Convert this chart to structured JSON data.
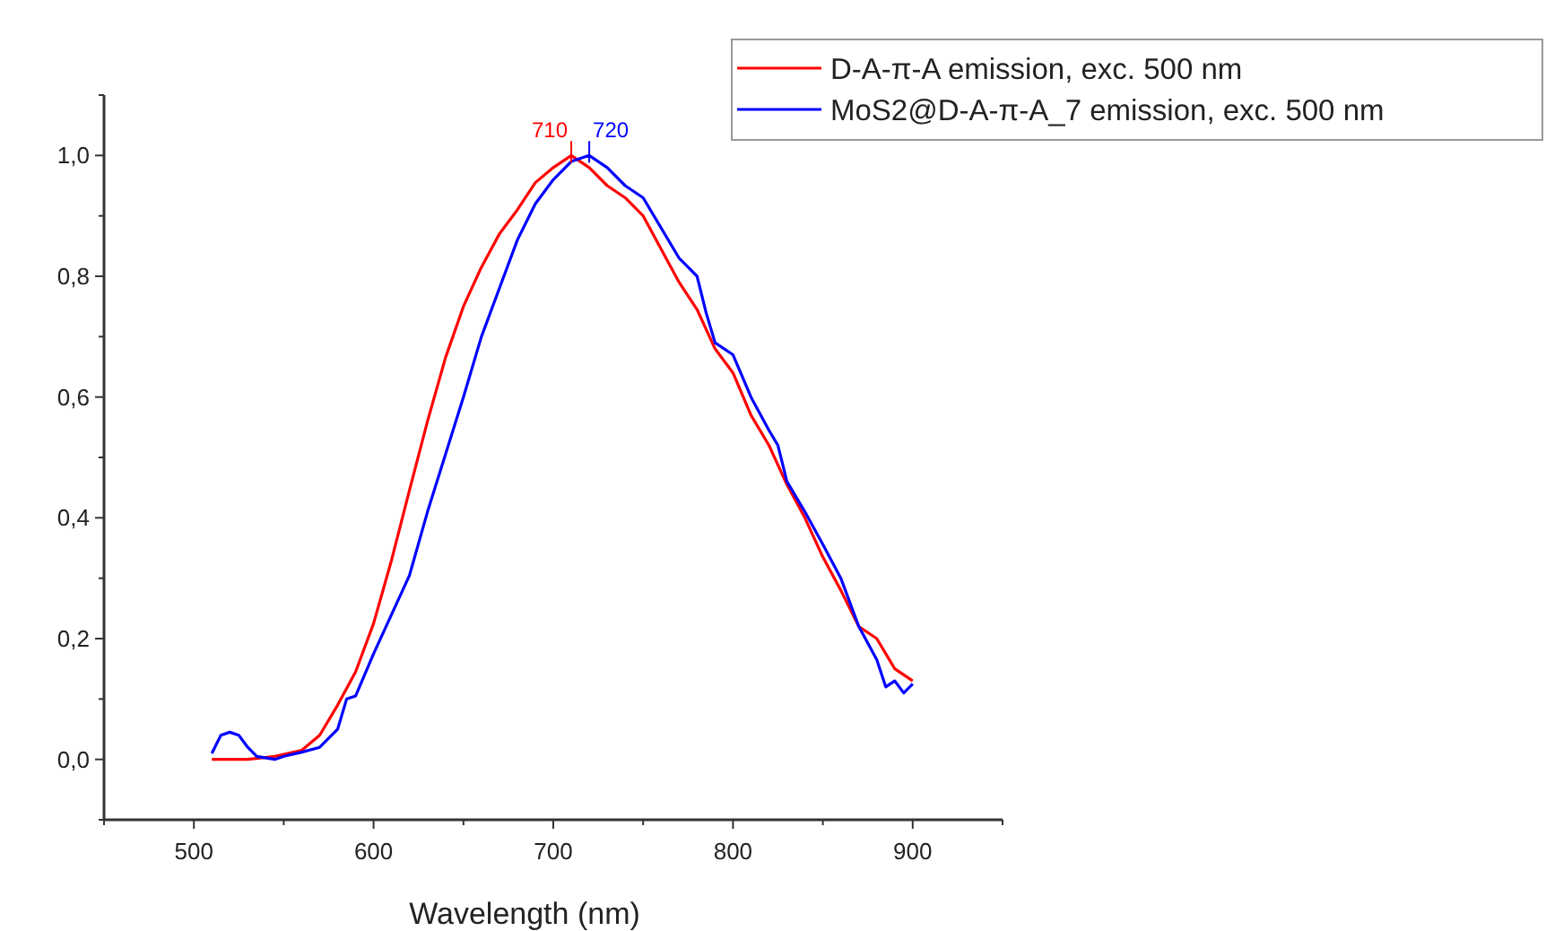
{
  "chart_data": {
    "type": "line",
    "xlabel": "Wavelength (nm)",
    "xlim": [
      450,
      950
    ],
    "ylim": [
      -0.1,
      1.1
    ],
    "xticks": [
      {
        "value": 450,
        "label": null
      },
      500,
      {
        "value": 550,
        "label": null
      },
      600,
      {
        "value": 650,
        "label": null
      },
      700,
      {
        "value": 750,
        "label": null
      },
      800,
      {
        "value": 850,
        "label": null
      },
      900,
      {
        "value": 950,
        "label": null
      }
    ],
    "yticks": [
      {
        "value": -0.1,
        "label": null
      },
      {
        "value": 0,
        "label": "0,0"
      },
      {
        "value": 0.1,
        "label": null
      },
      {
        "value": 0.2,
        "label": "0,2"
      },
      {
        "value": 0.3,
        "label": null
      },
      {
        "value": 0.4,
        "label": "0,4"
      },
      {
        "value": 0.5,
        "label": null
      },
      {
        "value": 0.6,
        "label": "0,6"
      },
      {
        "value": 0.7,
        "label": null
      },
      {
        "value": 0.8,
        "label": "0,8"
      },
      {
        "value": 0.9,
        "label": null
      },
      {
        "value": 1.0,
        "label": "1,0"
      },
      {
        "value": 1.1,
        "label": null
      }
    ],
    "grid": false,
    "legend": "top right",
    "marker": "none",
    "line_style": "solid",
    "series": [
      {
        "name": "D-A-π-A emission, exc. 500 nm",
        "color": "#ff0000",
        "x": [
          510,
          530,
          545,
          560,
          570,
          580,
          590,
          600,
          610,
          620,
          630,
          640,
          650,
          660,
          670,
          680,
          690,
          700,
          710,
          720,
          730,
          740,
          750,
          760,
          770,
          780,
          790,
          800,
          810,
          820,
          830,
          840,
          850,
          860,
          870,
          880,
          890,
          900
        ],
        "values": [
          0.0,
          0.0,
          0.005,
          0.015,
          0.04,
          0.09,
          0.145,
          0.225,
          0.33,
          0.446,
          0.56,
          0.665,
          0.75,
          0.815,
          0.87,
          0.91,
          0.955,
          0.98,
          1.0,
          0.98,
          0.95,
          0.93,
          0.9,
          0.845,
          0.79,
          0.745,
          0.68,
          0.64,
          0.57,
          0.52,
          0.455,
          0.4,
          0.335,
          0.28,
          0.22,
          0.2,
          0.15,
          0.13
        ]
      },
      {
        "name": "MoS2@D-A-π-A_7 emission, exc. 500 nm",
        "color": "#0000ff",
        "x": [
          510,
          515,
          520,
          525,
          530,
          535,
          545,
          550,
          560,
          570,
          580,
          585,
          590,
          600,
          610,
          620,
          630,
          640,
          650,
          660,
          670,
          680,
          690,
          700,
          710,
          720,
          730,
          740,
          750,
          760,
          770,
          780,
          785,
          790,
          800,
          810,
          820,
          825,
          830,
          840,
          850,
          860,
          870,
          880,
          885,
          890,
          895,
          900
        ],
        "values": [
          0.01,
          0.04,
          0.045,
          0.04,
          0.02,
          0.005,
          0.0,
          0.005,
          0.012,
          0.02,
          0.05,
          0.1,
          0.105,
          0.175,
          0.24,
          0.305,
          0.41,
          0.505,
          0.6,
          0.7,
          0.78,
          0.86,
          0.92,
          0.96,
          0.99,
          1.0,
          0.98,
          0.95,
          0.93,
          0.88,
          0.83,
          0.8,
          0.74,
          0.69,
          0.67,
          0.6,
          0.545,
          0.52,
          0.46,
          0.41,
          0.356,
          0.3,
          0.22,
          0.165,
          0.12,
          0.13,
          0.11,
          0.125
        ]
      }
    ],
    "annotations": [
      {
        "text": "710",
        "x": 710,
        "y": 1.0
      },
      {
        "text": "720",
        "x": 720,
        "y": 1.0
      }
    ]
  }
}
